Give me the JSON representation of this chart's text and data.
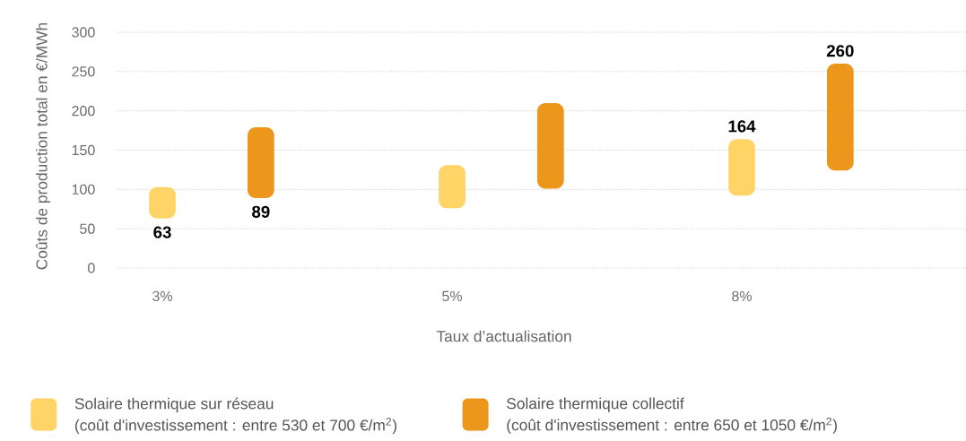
{
  "chart_data": {
    "type": "bar",
    "xlabel": "Taux d’actualisation",
    "ylabel": "Coûts de production total en €/MWh",
    "categories": [
      "3%",
      "5%",
      "8%"
    ],
    "series": [
      {
        "name": "Solaire thermique sur réseau (coût d'investissement : entre 530 et 700 €/m$^{2}$)",
        "color": "#fed466",
        "base": [
          63,
          76,
          92
        ],
        "values": [
          40,
          55,
          72
        ]
      },
      {
        "name": "Solaire thermique collectif (coût d'investissement : entre 650 et 1050 €/m$^{2}$)",
        "color": "#ec961b",
        "base": [
          89,
          101,
          124
        ],
        "values": [
          90,
          109,
          136
        ]
      }
    ],
    "ylim": [
      0,
      300
    ],
    "yticks": [
      0,
      50,
      100,
      150,
      200,
      250,
      300
    ],
    "grid": "y",
    "legend": "bottom",
    "annotations": [
      {
        "text": "63",
        "x": "3%",
        "y": 63
      },
      {
        "text": "89",
        "y": 89
      },
      {
        "text": "164",
        "x": "8%",
        "y": 164
      },
      {
        "text": "260",
        "y": 260
      }
    ]
  }
}
